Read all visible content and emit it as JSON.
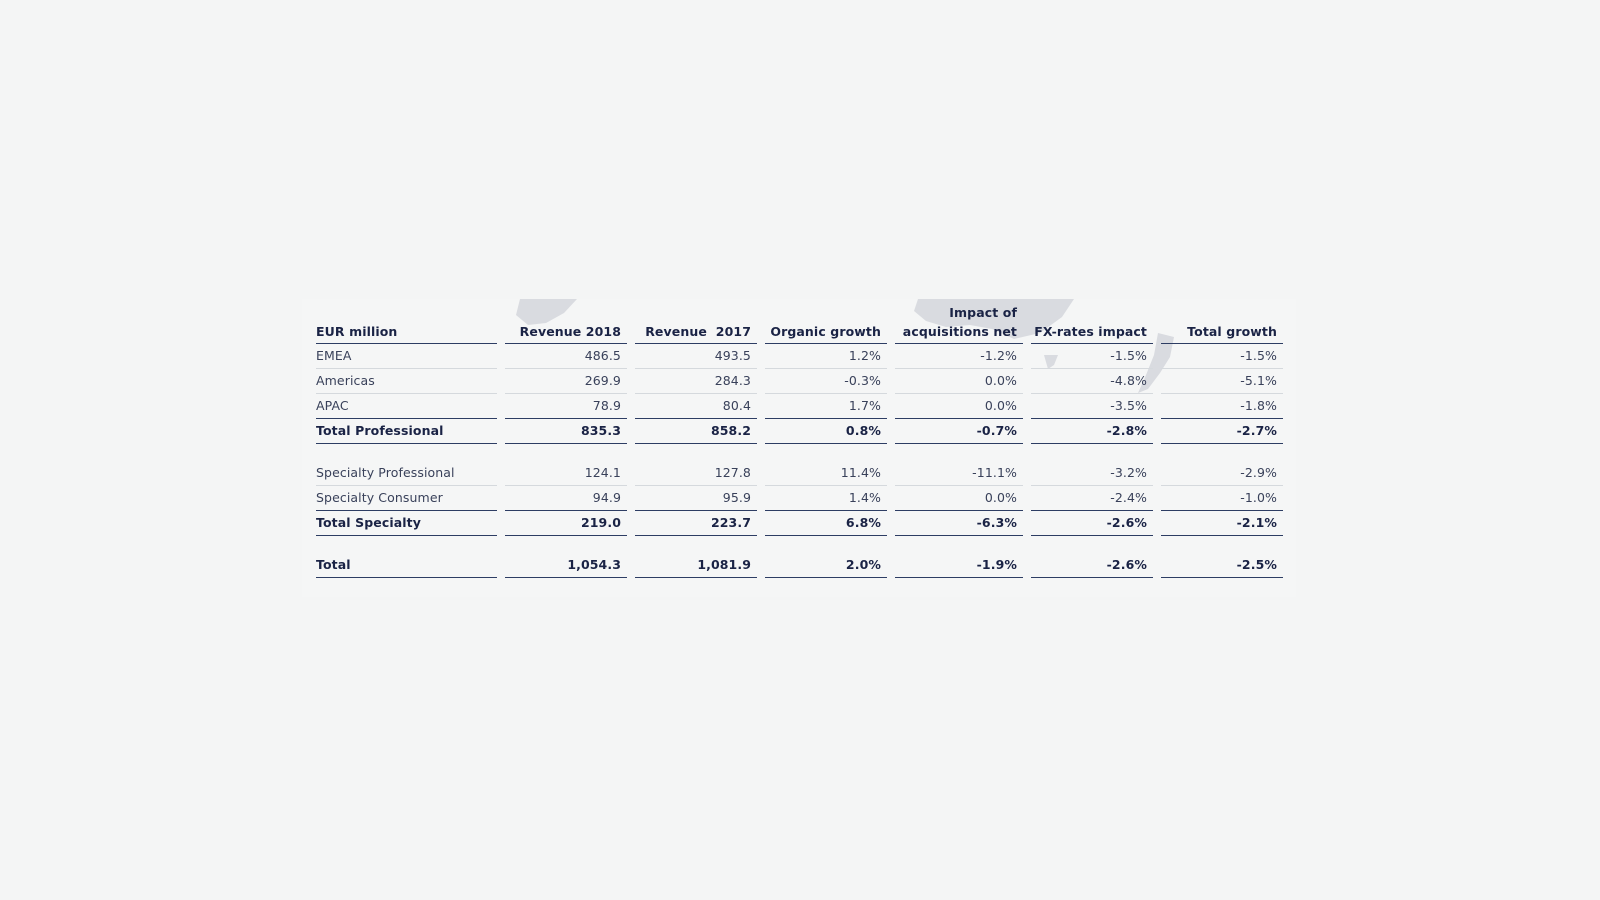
{
  "table": {
    "headers": {
      "label": "EUR million",
      "revenue_2018": "Revenue 2018",
      "revenue_2017": "Revenue  2017",
      "organic_growth": "Organic growth",
      "acquisitions_line1": "Impact of",
      "acquisitions_line2": "acquisitions net",
      "fx_impact": "FX-rates impact",
      "total_growth": "Total growth"
    },
    "professional": [
      {
        "label": "EMEA",
        "rev2018": "486.5",
        "rev2017": "493.5",
        "organic": "1.2%",
        "acq": "-1.2%",
        "fx": "-1.5%",
        "total": "-1.5%"
      },
      {
        "label": "Americas",
        "rev2018": "269.9",
        "rev2017": "284.3",
        "organic": "-0.3%",
        "acq": "0.0%",
        "fx": "-4.8%",
        "total": "-5.1%"
      },
      {
        "label": "APAC",
        "rev2018": "78.9",
        "rev2017": "80.4",
        "organic": "1.7%",
        "acq": "0.0%",
        "fx": "-3.5%",
        "total": "-1.8%"
      }
    ],
    "total_professional": {
      "label": "Total Professional",
      "rev2018": "835.3",
      "rev2017": "858.2",
      "organic": "0.8%",
      "acq": "-0.7%",
      "fx": "-2.8%",
      "total": "-2.7%"
    },
    "specialty": [
      {
        "label": "Specialty Professional",
        "rev2018": "124.1",
        "rev2017": "127.8",
        "organic": "11.4%",
        "acq": "-11.1%",
        "fx": "-3.2%",
        "total": "-2.9%"
      },
      {
        "label": "Specialty Consumer",
        "rev2018": "94.9",
        "rev2017": "95.9",
        "organic": "1.4%",
        "acq": "0.0%",
        "fx": "-2.4%",
        "total": "-1.0%"
      }
    ],
    "total_specialty": {
      "label": "Total Specialty",
      "rev2018": "219.0",
      "rev2017": "223.7",
      "organic": "6.8%",
      "acq": "-6.3%",
      "fx": "-2.6%",
      "total": "-2.1%"
    },
    "grand_total": {
      "label": "Total",
      "rev2018": "1,054.3",
      "rev2017": "1,081.9",
      "organic": "2.0%",
      "acq": "-1.9%",
      "fx": "-2.6%",
      "total": "-2.5%"
    }
  },
  "colors": {
    "text_dark": "#1a2345",
    "rule": "#2d3d63",
    "background": "#f4f5f5",
    "map_shape": "#d9dbe0"
  },
  "icons": [
    "world-map-watermark"
  ]
}
